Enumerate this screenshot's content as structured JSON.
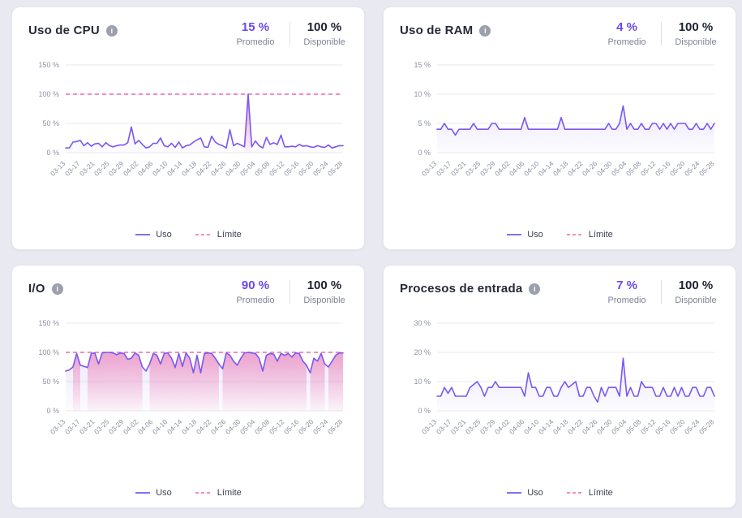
{
  "page": {
    "background": "#e9eaf1"
  },
  "colors": {
    "line": "#7a58f0",
    "limit": "#ef6ca6",
    "area_lavender_top": "rgba(122,88,240,0.14)",
    "area_lavender_bottom": "rgba(122,88,240,0.02)",
    "area_pink_top": "rgba(236,94,160,0.50)",
    "area_pink_bottom": "rgba(236,94,160,0.05)",
    "grid": "#e9eaf0",
    "axis_text": "#8c92a1",
    "title_text": "#252a38",
    "average_text": "#6b46f2",
    "available_text": "#1c2130"
  },
  "legend": {
    "uso": "Uso",
    "limite": "Límite"
  },
  "cards": [
    {
      "title": "Uso de CPU",
      "info_icon": "i",
      "average_value": "15 %",
      "average_label": "Promedio",
      "available_value": "100 %",
      "available_label": "Disponible"
    },
    {
      "title": "Uso de RAM",
      "info_icon": "i",
      "average_value": "4 %",
      "average_label": "Promedio",
      "available_value": "100 %",
      "available_label": "Disponible"
    },
    {
      "title": "I/O",
      "info_icon": "i",
      "average_value": "90 %",
      "average_label": "Promedio",
      "available_value": "100 %",
      "available_label": "Disponible"
    },
    {
      "title": "Procesos de entrada",
      "info_icon": "i",
      "average_value": "7 %",
      "average_label": "Promedio",
      "available_value": "100 %",
      "available_label": "Disponible"
    }
  ],
  "chart_data": {
    "type": "line",
    "x_tick_labels": [
      "03-13",
      "03-17",
      "03-21",
      "03-25",
      "03-29",
      "04-02",
      "04-06",
      "04-10",
      "04-14",
      "04-18",
      "04-22",
      "04-26",
      "04-30",
      "05-04",
      "05-08",
      "05-12",
      "05-16",
      "05-20",
      "05-24",
      "05-28"
    ],
    "x_label_every_n_points": 4,
    "charts": [
      {
        "name": "Uso de CPU",
        "ylim": [
          0,
          150
        ],
        "yticks": [
          {
            "v": 150,
            "label": "150 %"
          },
          {
            "v": 100,
            "label": "100 %"
          },
          {
            "v": 50,
            "label": "50 %"
          },
          {
            "v": 0,
            "label": "0 %"
          }
        ],
        "limit_value": 100,
        "limit_fill_threshold": 85,
        "series": [
          {
            "name": "Uso",
            "values": [
              8,
              8,
              18,
              19,
              21,
              12,
              17,
              11,
              15,
              16,
              10,
              17,
              12,
              10,
              12,
              13,
              13,
              17,
              44,
              15,
              21,
              14,
              8,
              10,
              16,
              16,
              25,
              12,
              10,
              16,
              9,
              18,
              8,
              12,
              13,
              18,
              22,
              25,
              10,
              9,
              28,
              18,
              14,
              12,
              8,
              39,
              12,
              16,
              13,
              10,
              100,
              10,
              20,
              12,
              8,
              26,
              14,
              17,
              14,
              30,
              10,
              10,
              11,
              10,
              14,
              11,
              12,
              10,
              9,
              12,
              10,
              9,
              13,
              8,
              10,
              12,
              12
            ]
          }
        ]
      },
      {
        "name": "Uso de RAM",
        "ylim": [
          0,
          15
        ],
        "yticks": [
          {
            "v": 15,
            "label": "15 %"
          },
          {
            "v": 10,
            "label": "10 %"
          },
          {
            "v": 5,
            "label": "5 %"
          },
          {
            "v": 0,
            "label": "0 %"
          }
        ],
        "limit_value": 100,
        "limit_fill_threshold": null,
        "series": [
          {
            "name": "Uso",
            "values": [
              4,
              4,
              5,
              4,
              4,
              3,
              4,
              4,
              4,
              4,
              5,
              4,
              4,
              4,
              4,
              5,
              5,
              4,
              4,
              4,
              4,
              4,
              4,
              4,
              6,
              4,
              4,
              4,
              4,
              4,
              4,
              4,
              4,
              4,
              6,
              4,
              4,
              4,
              4,
              4,
              4,
              4,
              4,
              4,
              4,
              4,
              4,
              5,
              4,
              4,
              5,
              8,
              4,
              5,
              4,
              4,
              5,
              4,
              4,
              5,
              5,
              4,
              5,
              4,
              5,
              4,
              5,
              5,
              5,
              4,
              4,
              5,
              4,
              4,
              5,
              4,
              5
            ]
          }
        ]
      },
      {
        "name": "I/O",
        "ylim": [
          0,
          150
        ],
        "yticks": [
          {
            "v": 150,
            "label": "150 %"
          },
          {
            "v": 100,
            "label": "100 %"
          },
          {
            "v": 50,
            "label": "50 %"
          },
          {
            "v": 0,
            "label": "0 %"
          }
        ],
        "limit_value": 100,
        "limit_fill_threshold": 85,
        "series": [
          {
            "name": "Uso",
            "values": [
              68,
              70,
              75,
              98,
              78,
              76,
              74,
              98,
              99,
              80,
              99,
              100,
              100,
              99,
              96,
              99,
              98,
              88,
              90,
              99,
              95,
              75,
              68,
              80,
              98,
              95,
              80,
              98,
              99,
              90,
              74,
              98,
              76,
              99,
              90,
              65,
              95,
              65,
              98,
              99,
              98,
              90,
              80,
              72,
              99,
              95,
              85,
              78,
              90,
              99,
              100,
              99,
              98,
              90,
              68,
              95,
              98,
              97,
              85,
              98,
              95,
              98,
              92,
              99,
              98,
              85,
              78,
              65,
              90,
              85,
              98,
              80,
              75,
              85,
              95,
              99,
              99
            ]
          }
        ]
      },
      {
        "name": "Procesos de entrada",
        "ylim": [
          0,
          30
        ],
        "yticks": [
          {
            "v": 30,
            "label": "30 %"
          },
          {
            "v": 20,
            "label": "20 %"
          },
          {
            "v": 10,
            "label": "10 %"
          },
          {
            "v": 0,
            "label": "0 %"
          }
        ],
        "limit_value": 100,
        "limit_fill_threshold": null,
        "series": [
          {
            "name": "Uso",
            "values": [
              5,
              5,
              8,
              6,
              8,
              5,
              5,
              5,
              5,
              8,
              9,
              10,
              8,
              5,
              8,
              8,
              10,
              8,
              8,
              8,
              8,
              8,
              8,
              8,
              5,
              13,
              8,
              8,
              5,
              5,
              8,
              8,
              5,
              5,
              8,
              10,
              8,
              9,
              10,
              5,
              5,
              8,
              8,
              5,
              3,
              8,
              5,
              8,
              8,
              8,
              5,
              18,
              5,
              8,
              5,
              5,
              10,
              8,
              8,
              8,
              5,
              5,
              8,
              5,
              5,
              8,
              5,
              8,
              5,
              5,
              8,
              8,
              5,
              5,
              8,
              8,
              5
            ]
          }
        ]
      }
    ]
  }
}
